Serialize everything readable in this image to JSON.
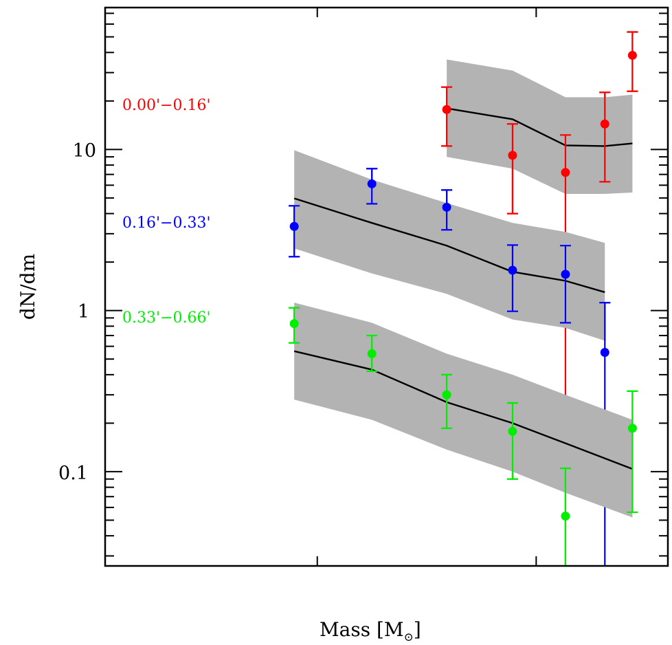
{
  "chart_data": {
    "type": "scatter",
    "title": "",
    "xlabel": "Mass [M",
    "xlabel_subscript": "⊙",
    "xlabel_close": "]",
    "ylabel": "dN/dm",
    "yscale": "log",
    "ylim": [
      0.026,
      76
    ],
    "xlim": [
      0,
      1
    ],
    "x_note": "x tick marks unlabeled; x given as fraction of axis range",
    "x_ticks": [
      0.377,
      0.766
    ],
    "y_ticks": [
      {
        "value": 10,
        "label": "10"
      },
      {
        "value": 1,
        "label": "1"
      },
      {
        "value": 0.1,
        "label": "0.1"
      }
    ],
    "grid": false,
    "background_band_color": "#b3b3b3",
    "model_line_color": "#000000",
    "series": [
      {
        "name": "0.00'−0.16'",
        "color": "#ff0000",
        "points": [
          {
            "x": 0.607,
            "y": 17.7,
            "err_low": 10.5,
            "err_high": 24.4
          },
          {
            "x": 0.724,
            "y": 9.2,
            "err_low": 4.0,
            "err_high": 14.4
          },
          {
            "x": 0.818,
            "y": 7.2,
            "err_low": null,
            "err_high": 12.3
          },
          {
            "x": 0.888,
            "y": 14.4,
            "err_low": 6.3,
            "err_high": 22.6
          },
          {
            "x": 0.937,
            "y": 38.4,
            "err_low": 23.0,
            "err_high": 53.6
          }
        ],
        "model": {
          "x": [
            0.607,
            0.724,
            0.818,
            0.888,
            0.937
          ],
          "y": [
            18.0,
            15.4,
            10.6,
            10.5,
            10.9
          ],
          "upper": [
            36.2,
            30.9,
            21.1,
            21.1,
            21.9
          ],
          "lower": [
            9.0,
            7.6,
            5.3,
            5.3,
            5.4
          ]
        }
      },
      {
        "name": "0.16'−0.33'",
        "color": "#0000ff",
        "points": [
          {
            "x": 0.336,
            "y": 3.33,
            "err_low": 2.16,
            "err_high": 4.47
          },
          {
            "x": 0.474,
            "y": 6.12,
            "err_low": 4.6,
            "err_high": 7.6
          },
          {
            "x": 0.607,
            "y": 4.38,
            "err_low": 3.17,
            "err_high": 5.6
          },
          {
            "x": 0.724,
            "y": 1.78,
            "err_low": 0.99,
            "err_high": 2.55
          },
          {
            "x": 0.818,
            "y": 1.68,
            "err_low": 0.84,
            "err_high": 2.53
          },
          {
            "x": 0.888,
            "y": 0.55,
            "err_low": null,
            "err_high": 1.12
          }
        ],
        "model": {
          "x": [
            0.336,
            0.474,
            0.607,
            0.724,
            0.818,
            0.888
          ],
          "y": [
            4.97,
            3.5,
            2.53,
            1.74,
            1.53,
            1.3
          ],
          "upper": [
            9.9,
            6.5,
            4.65,
            3.5,
            3.08,
            2.63
          ],
          "lower": [
            2.43,
            1.7,
            1.27,
            0.88,
            0.78,
            0.65
          ]
        }
      },
      {
        "name": "0.33'−0.66'",
        "color": "#00ee00",
        "points": [
          {
            "x": 0.336,
            "y": 0.83,
            "err_low": 0.63,
            "err_high": 1.04
          },
          {
            "x": 0.474,
            "y": 0.54,
            "err_low": 0.42,
            "err_high": 0.7
          },
          {
            "x": 0.607,
            "y": 0.3,
            "err_low": 0.186,
            "err_high": 0.4
          },
          {
            "x": 0.724,
            "y": 0.178,
            "err_low": 0.09,
            "err_high": 0.267
          },
          {
            "x": 0.818,
            "y": 0.053,
            "err_low": null,
            "err_high": 0.105
          },
          {
            "x": 0.937,
            "y": 0.186,
            "err_low": 0.056,
            "err_high": 0.316
          }
        ],
        "model": {
          "x": [
            0.336,
            0.474,
            0.607,
            0.724,
            0.818,
            0.937
          ],
          "y": [
            0.56,
            0.43,
            0.27,
            0.2,
            0.15,
            0.104
          ],
          "upper": [
            1.12,
            0.84,
            0.54,
            0.4,
            0.3,
            0.21
          ],
          "lower": [
            0.28,
            0.21,
            0.137,
            0.1,
            0.074,
            0.052
          ]
        }
      }
    ],
    "annotations": [
      {
        "text": "0.00'−0.16'",
        "series": 0
      },
      {
        "text": "0.16'−0.33'",
        "series": 1
      },
      {
        "text": "0.33'−0.66'",
        "series": 2
      }
    ]
  }
}
